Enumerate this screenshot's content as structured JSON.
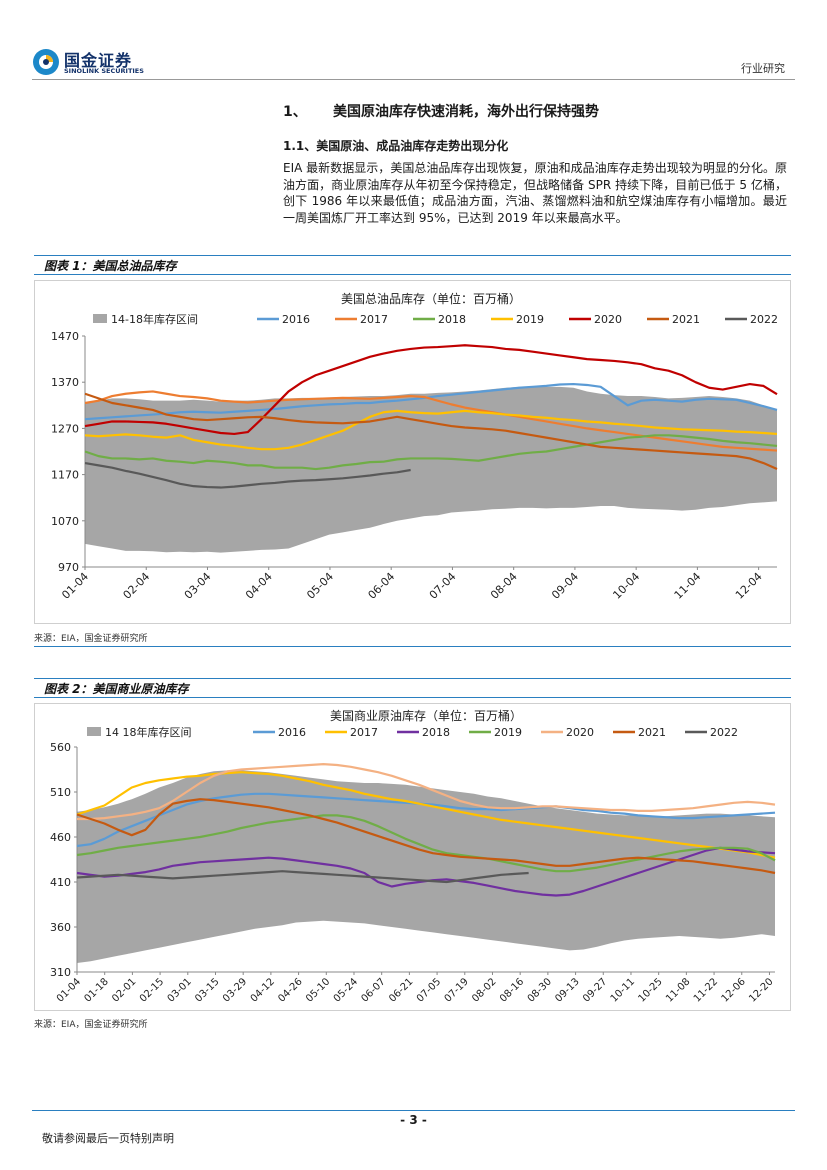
{
  "header": {
    "logo_cn": "国金证券",
    "logo_en": "SINOLINK SECURITIES",
    "doc_type": "行业研究"
  },
  "section": {
    "number": "1、",
    "title": "美国原油库存快速消耗，海外出行保持强势",
    "sub_number_title": "1.1、美国原油、成品油库存走势出现分化",
    "paragraph": "EIA 最新数据显示，美国总油品库存出现恢复，原油和成品油库存走势出现较为明显的分化。原油方面，商业原油库存从年初至今保持稳定，但战略储备 SPR 持续下降，目前已低于 5 亿桶，创下 1986 年以来最低值；成品油方面，汽油、蒸馏燃料油和航空煤油库存有小幅增加。最近一周美国炼厂开工率达到 95%，已达到 2019 年以来最高水平。"
  },
  "figures": [
    {
      "label": "图表 1：美国总油品库存",
      "source": "来源：EIA，国金证券研究所"
    },
    {
      "label": "图表 2：美国商业原油库存",
      "source": "来源：EIA，国金证券研究所"
    }
  ],
  "chart_data": [
    {
      "type": "line",
      "title": "美国总油品库存（单位：百万桶）",
      "ylim": [
        970,
        1470
      ],
      "yticks": [
        970,
        1070,
        1170,
        1270,
        1370,
        1470
      ],
      "xticks": [
        "01-04",
        "02-04",
        "03-04",
        "04-04",
        "05-04",
        "06-04",
        "07-04",
        "08-04",
        "09-04",
        "10-04",
        "11-04",
        "12-04"
      ],
      "x_range": [
        0,
        51
      ],
      "band": {
        "name": "14-18年库存区间",
        "color": "#a6a6a6",
        "upper": [
          1325,
          1330,
          1335,
          1335,
          1333,
          1330,
          1330,
          1330,
          1332,
          1330,
          1328,
          1330,
          1330,
          1332,
          1335,
          1335,
          1336,
          1336,
          1337,
          1338,
          1339,
          1340,
          1340,
          1342,
          1345,
          1345,
          1347,
          1348,
          1350,
          1352,
          1355,
          1358,
          1360,
          1360,
          1360,
          1360,
          1358,
          1350,
          1345,
          1342,
          1340,
          1340,
          1338,
          1335,
          1336,
          1338,
          1340,
          1338,
          1335,
          1330,
          1320,
          1310
        ],
        "lower": [
          1020,
          1015,
          1010,
          1005,
          1005,
          1004,
          1002,
          1003,
          1002,
          1003,
          1001,
          1003,
          1005,
          1007,
          1008,
          1010,
          1020,
          1030,
          1040,
          1045,
          1050,
          1055,
          1063,
          1070,
          1075,
          1080,
          1082,
          1088,
          1090,
          1092,
          1095,
          1096,
          1098,
          1098,
          1097,
          1098,
          1098,
          1100,
          1102,
          1102,
          1098,
          1096,
          1095,
          1094,
          1092,
          1094,
          1098,
          1100,
          1104,
          1108,
          1110,
          1112
        ]
      },
      "series": [
        {
          "name": "2016",
          "color": "#5b9bd5",
          "values": [
            1290,
            1292,
            1294,
            1296,
            1298,
            1300,
            1302,
            1305,
            1306,
            1305,
            1304,
            1306,
            1308,
            1310,
            1312,
            1315,
            1318,
            1320,
            1322,
            1323,
            1325,
            1325,
            1328,
            1330,
            1333,
            1336,
            1340,
            1343,
            1346,
            1349,
            1352,
            1355,
            1358,
            1360,
            1362,
            1365,
            1366,
            1364,
            1360,
            1340,
            1320,
            1330,
            1332,
            1330,
            1328,
            1332,
            1334,
            1333,
            1332,
            1325,
            1318,
            1310
          ]
        },
        {
          "name": "2017",
          "color": "#ed7d31",
          "values": [
            1325,
            1330,
            1340,
            1345,
            1348,
            1350,
            1345,
            1340,
            1338,
            1335,
            1330,
            1328,
            1326,
            1328,
            1330,
            1332,
            1333,
            1334,
            1335,
            1336,
            1335,
            1334,
            1336,
            1338,
            1340,
            1338,
            1330,
            1322,
            1315,
            1310,
            1305,
            1300,
            1295,
            1290,
            1285,
            1280,
            1275,
            1270,
            1266,
            1262,
            1258,
            1254,
            1250,
            1246,
            1242,
            1238,
            1234,
            1230,
            1228,
            1226,
            1224,
            1222
          ]
        },
        {
          "name": "2018",
          "color": "#70ad47",
          "values": [
            1220,
            1210,
            1205,
            1205,
            1203,
            1205,
            1200,
            1198,
            1195,
            1200,
            1198,
            1195,
            1190,
            1190,
            1185,
            1185,
            1185,
            1182,
            1185,
            1190,
            1193,
            1197,
            1198,
            1203,
            1205,
            1205,
            1205,
            1204,
            1202,
            1200,
            1205,
            1210,
            1215,
            1218,
            1220,
            1225,
            1230,
            1235,
            1240,
            1245,
            1250,
            1252,
            1255,
            1255,
            1253,
            1250,
            1247,
            1243,
            1240,
            1238,
            1235,
            1232
          ]
        },
        {
          "name": "2019",
          "color": "#ffc000",
          "values": [
            1255,
            1253,
            1255,
            1257,
            1255,
            1252,
            1250,
            1255,
            1245,
            1240,
            1235,
            1232,
            1228,
            1225,
            1225,
            1228,
            1235,
            1245,
            1255,
            1265,
            1280,
            1295,
            1305,
            1308,
            1305,
            1303,
            1302,
            1305,
            1308,
            1305,
            1303,
            1300,
            1298,
            1295,
            1293,
            1290,
            1288,
            1285,
            1283,
            1280,
            1278,
            1275,
            1272,
            1270,
            1268,
            1267,
            1266,
            1265,
            1263,
            1262,
            1260,
            1258
          ]
        },
        {
          "name": "2020",
          "color": "#c00000",
          "values": [
            1275,
            1280,
            1285,
            1285,
            1284,
            1283,
            1280,
            1275,
            1270,
            1265,
            1260,
            1258,
            1262,
            1290,
            1320,
            1350,
            1370,
            1385,
            1395,
            1405,
            1415,
            1425,
            1432,
            1438,
            1442,
            1445,
            1446,
            1448,
            1450,
            1448,
            1446,
            1442,
            1440,
            1436,
            1432,
            1428,
            1424,
            1420,
            1418,
            1416,
            1413,
            1409,
            1400,
            1395,
            1385,
            1370,
            1358,
            1354,
            1360,
            1366,
            1362,
            1344
          ]
        },
        {
          "name": "2021",
          "color": "#c55a11",
          "values": [
            1345,
            1335,
            1325,
            1320,
            1315,
            1310,
            1300,
            1295,
            1290,
            1288,
            1290,
            1292,
            1294,
            1295,
            1292,
            1288,
            1285,
            1283,
            1282,
            1281,
            1283,
            1285,
            1290,
            1295,
            1290,
            1285,
            1280,
            1275,
            1272,
            1270,
            1268,
            1265,
            1260,
            1255,
            1250,
            1245,
            1240,
            1235,
            1230,
            1228,
            1226,
            1224,
            1222,
            1220,
            1218,
            1216,
            1214,
            1212,
            1210,
            1205,
            1195,
            1182
          ]
        },
        {
          "name": "2022",
          "color": "#595959",
          "values": [
            1195,
            1190,
            1185,
            1178,
            1172,
            1165,
            1158,
            1150,
            1145,
            1143,
            1142,
            1144,
            1147,
            1150,
            1152,
            1155,
            1157,
            1158,
            1160,
            1162,
            1165,
            1168,
            1172,
            1175,
            1180
          ]
        }
      ]
    },
    {
      "type": "line",
      "title": "美国商业原油库存（单位：百万桶）",
      "ylim": [
        310,
        560
      ],
      "yticks": [
        310,
        360,
        410,
        460,
        510,
        560
      ],
      "xticks": [
        "01-04",
        "01-18",
        "02-01",
        "02-15",
        "03-01",
        "03-15",
        "03-29",
        "04-12",
        "04-26",
        "05-10",
        "05-24",
        "06-07",
        "06-21",
        "07-05",
        "07-19",
        "08-02",
        "08-16",
        "08-30",
        "09-13",
        "09-27",
        "10-11",
        "10-25",
        "11-08",
        "11-22",
        "12-06",
        "12-20"
      ],
      "x_range": [
        0,
        51
      ],
      "band": {
        "name": "14 18年库存区间",
        "color": "#a6a6a6",
        "upper": [
          488,
          490,
          493,
          497,
          502,
          508,
          515,
          520,
          526,
          530,
          533,
          534,
          534,
          533,
          532,
          530,
          528,
          526,
          524,
          522,
          521,
          520,
          520,
          519,
          518,
          516,
          514,
          512,
          510,
          508,
          505,
          503,
          500,
          497,
          494,
          492,
          490,
          488,
          486,
          485,
          484,
          484,
          483,
          483,
          484,
          485,
          486,
          486,
          485,
          484,
          483,
          482
        ],
        "lower": [
          320,
          322,
          325,
          328,
          331,
          334,
          337,
          340,
          343,
          346,
          349,
          352,
          355,
          358,
          360,
          362,
          365,
          366,
          367,
          366,
          365,
          364,
          362,
          360,
          358,
          356,
          354,
          352,
          350,
          348,
          346,
          344,
          342,
          340,
          338,
          336,
          334,
          335,
          338,
          342,
          345,
          347,
          348,
          349,
          350,
          349,
          348,
          347,
          348,
          350,
          352,
          350
        ]
      },
      "series": [
        {
          "name": "2016",
          "color": "#5b9bd5",
          "values": [
            450,
            452,
            458,
            466,
            472,
            478,
            484,
            490,
            496,
            500,
            503,
            505,
            507,
            508,
            508,
            507,
            506,
            505,
            504,
            503,
            502,
            501,
            500,
            499,
            498,
            497,
            496,
            494,
            492,
            491,
            491,
            490,
            491,
            492,
            493,
            494,
            492,
            490,
            489,
            487,
            486,
            484,
            483,
            482,
            481,
            481,
            482,
            483,
            484,
            485,
            486,
            487
          ]
        },
        {
          "name": "2017",
          "color": "#ffc000",
          "values": [
            485,
            490,
            495,
            505,
            515,
            520,
            523,
            525,
            527,
            528,
            530,
            531,
            532,
            531,
            530,
            528,
            525,
            522,
            518,
            515,
            512,
            508,
            505,
            502,
            500,
            497,
            494,
            491,
            488,
            485,
            482,
            479,
            477,
            475,
            473,
            471,
            469,
            467,
            465,
            463,
            461,
            459,
            457,
            455,
            453,
            451,
            449,
            447,
            445,
            443,
            440,
            437
          ]
        },
        {
          "name": "2018",
          "color": "#7030a0",
          "values": [
            420,
            418,
            416,
            417,
            419,
            421,
            424,
            428,
            430,
            432,
            433,
            434,
            435,
            436,
            437,
            436,
            434,
            432,
            430,
            428,
            425,
            420,
            410,
            405,
            408,
            410,
            412,
            413,
            411,
            409,
            406,
            403,
            400,
            398,
            396,
            395,
            396,
            400,
            405,
            410,
            415,
            420,
            425,
            430,
            435,
            440,
            445,
            448,
            446,
            444,
            443,
            442
          ]
        },
        {
          "name": "2019",
          "color": "#70ad47",
          "values": [
            440,
            442,
            445,
            448,
            450,
            452,
            454,
            456,
            458,
            460,
            463,
            466,
            470,
            473,
            476,
            478,
            480,
            482,
            484,
            484,
            482,
            478,
            472,
            465,
            458,
            452,
            446,
            442,
            440,
            438,
            436,
            433,
            430,
            427,
            424,
            422,
            422,
            424,
            426,
            429,
            432,
            435,
            438,
            441,
            444,
            446,
            447,
            448,
            448,
            447,
            442,
            434
          ]
        },
        {
          "name": "2020",
          "color": "#f4b183",
          "values": [
            480,
            480,
            481,
            483,
            485,
            488,
            492,
            500,
            510,
            520,
            528,
            533,
            535,
            536,
            537,
            538,
            539,
            540,
            541,
            540,
            538,
            535,
            532,
            528,
            523,
            518,
            512,
            506,
            500,
            496,
            493,
            492,
            492,
            493,
            494,
            494,
            493,
            492,
            491,
            490,
            490,
            489,
            489,
            490,
            491,
            492,
            494,
            496,
            498,
            499,
            498,
            496
          ]
        },
        {
          "name": "2021",
          "color": "#c55a11",
          "values": [
            485,
            480,
            475,
            468,
            462,
            468,
            485,
            497,
            500,
            502,
            501,
            499,
            497,
            495,
            493,
            490,
            487,
            484,
            480,
            476,
            471,
            466,
            461,
            456,
            451,
            446,
            442,
            440,
            438,
            437,
            436,
            435,
            434,
            432,
            430,
            428,
            428,
            430,
            432,
            434,
            436,
            437,
            436,
            435,
            434,
            433,
            431,
            429,
            427,
            425,
            423,
            420
          ]
        },
        {
          "name": "2022",
          "color": "#595959",
          "values": [
            415,
            416,
            417,
            418,
            417,
            416,
            415,
            414,
            415,
            416,
            417,
            418,
            419,
            420,
            421,
            422,
            421,
            420,
            419,
            418,
            417,
            416,
            415,
            414,
            413,
            412,
            411,
            410,
            412,
            414,
            416,
            418,
            419,
            420
          ]
        }
      ]
    }
  ],
  "footer": {
    "page": "- 3 -",
    "disclaimer": "敬请参阅最后一页特别声明"
  }
}
